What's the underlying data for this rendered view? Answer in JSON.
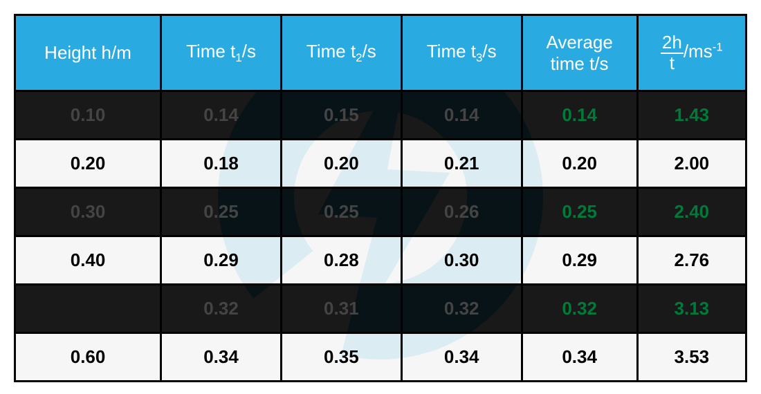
{
  "watermark_color": "#29abe2",
  "table": {
    "columns": [
      {
        "label_html": "Height h/m"
      },
      {
        "label_html": "Time t<span class='sub'>1</span>/s"
      },
      {
        "label_html": "Time t<span class='sub'>2</span>/s"
      },
      {
        "label_html": "Time t<span class='sub'>3</span>/s"
      },
      {
        "label_html": "Average<br>time t/s"
      },
      {
        "label_html": "<span class='frac'><span class='num'>2h</span><span class='den'>t</span></span>/ms<span class='sup'>-1</span>"
      }
    ],
    "rows": [
      {
        "h": "0.10",
        "t1": "0.14",
        "t2": "0.15",
        "t3": "0.14",
        "avg": "0.14",
        "v": "1.43"
      },
      {
        "h": "0.20",
        "t1": "0.18",
        "t2": "0.20",
        "t3": "0.21",
        "avg": "0.20",
        "v": "2.00"
      },
      {
        "h": "0.30",
        "t1": "0.25",
        "t2": "0.25",
        "t3": "0.26",
        "avg": "0.25",
        "v": "2.40"
      },
      {
        "h": "0.40",
        "t1": "0.29",
        "t2": "0.28",
        "t3": "0.30",
        "avg": "0.29",
        "v": "2.76"
      },
      {
        "h": "",
        "t1": "0.32",
        "t2": "0.31",
        "t3": "0.32",
        "avg": "0.32",
        "v": "3.13"
      },
      {
        "h": "0.60",
        "t1": "0.34",
        "t2": "0.35",
        "t3": "0.34",
        "avg": "0.34",
        "v": "3.53"
      }
    ],
    "header_bg": "#29abe2",
    "header_fg": "#ffffff",
    "calc_color": "#009245",
    "odd_row_bg": "rgba(5,5,5,0.92)",
    "even_row_bg": "rgba(245,245,245,0.88)",
    "border_color": "#000000"
  }
}
